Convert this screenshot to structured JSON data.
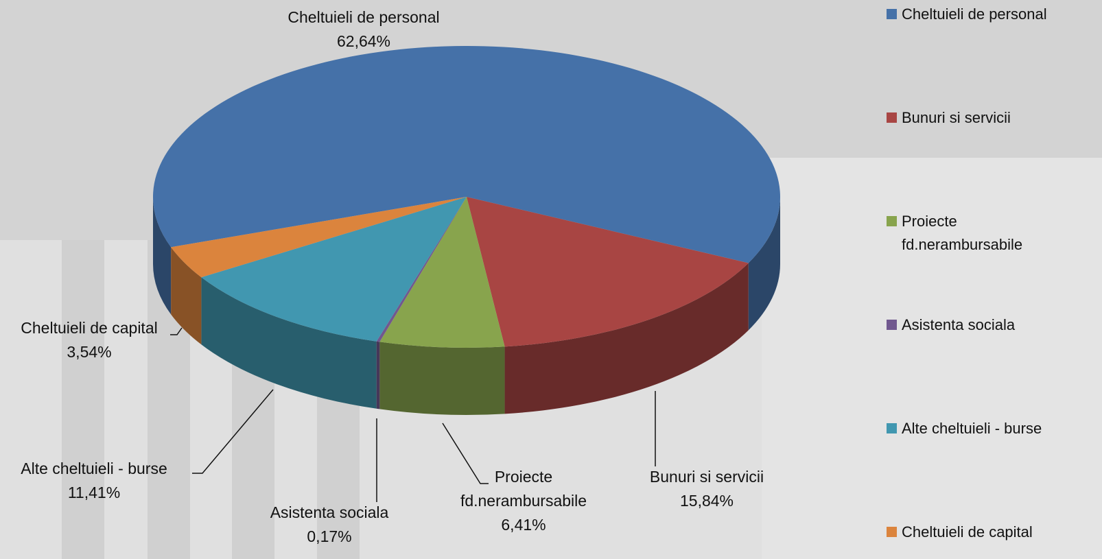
{
  "chart_data": {
    "type": "pie3d",
    "categories": [
      "Cheltuieli de personal",
      "Bunuri si servicii",
      "Proiecte fd.nerambursabile",
      "Asistenta sociala",
      "Alte cheltuieli - burse",
      "Cheltuieli de capital"
    ],
    "values": [
      62.64,
      15.84,
      6.41,
      0.17,
      11.41,
      3.54
    ],
    "value_labels": [
      "62,64%",
      "15,84%",
      "6,41%",
      "0,17%",
      "11,41%",
      "3,54%"
    ],
    "colors": [
      "#4571a8",
      "#a84543",
      "#88a44d",
      "#71588f",
      "#4197b0",
      "#db843d"
    ],
    "legend": "right"
  }
}
